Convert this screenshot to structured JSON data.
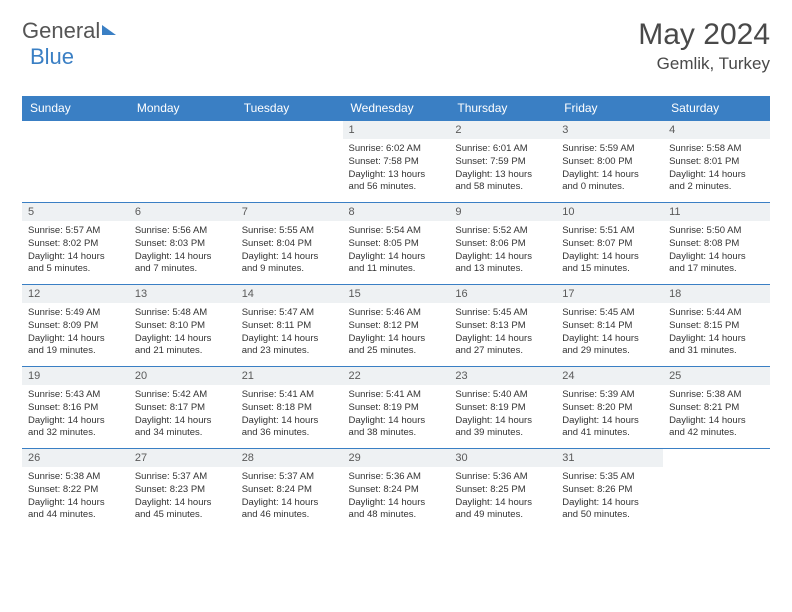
{
  "logo": {
    "part1": "General",
    "part2": "Blue"
  },
  "title": "May 2024",
  "location": "Gemlik, Turkey",
  "colors": {
    "header_bg": "#3a7fc4",
    "header_text": "#ffffff",
    "daynum_bg": "#eef1f3",
    "border": "#3a7fc4",
    "body_text": "#333333",
    "title_text": "#494949"
  },
  "day_headers": [
    "Sunday",
    "Monday",
    "Tuesday",
    "Wednesday",
    "Thursday",
    "Friday",
    "Saturday"
  ],
  "weeks": [
    [
      null,
      null,
      null,
      {
        "n": "1",
        "sr": "Sunrise: 6:02 AM",
        "ss": "Sunset: 7:58 PM",
        "dl": "Daylight: 13 hours and 56 minutes."
      },
      {
        "n": "2",
        "sr": "Sunrise: 6:01 AM",
        "ss": "Sunset: 7:59 PM",
        "dl": "Daylight: 13 hours and 58 minutes."
      },
      {
        "n": "3",
        "sr": "Sunrise: 5:59 AM",
        "ss": "Sunset: 8:00 PM",
        "dl": "Daylight: 14 hours and 0 minutes."
      },
      {
        "n": "4",
        "sr": "Sunrise: 5:58 AM",
        "ss": "Sunset: 8:01 PM",
        "dl": "Daylight: 14 hours and 2 minutes."
      }
    ],
    [
      {
        "n": "5",
        "sr": "Sunrise: 5:57 AM",
        "ss": "Sunset: 8:02 PM",
        "dl": "Daylight: 14 hours and 5 minutes."
      },
      {
        "n": "6",
        "sr": "Sunrise: 5:56 AM",
        "ss": "Sunset: 8:03 PM",
        "dl": "Daylight: 14 hours and 7 minutes."
      },
      {
        "n": "7",
        "sr": "Sunrise: 5:55 AM",
        "ss": "Sunset: 8:04 PM",
        "dl": "Daylight: 14 hours and 9 minutes."
      },
      {
        "n": "8",
        "sr": "Sunrise: 5:54 AM",
        "ss": "Sunset: 8:05 PM",
        "dl": "Daylight: 14 hours and 11 minutes."
      },
      {
        "n": "9",
        "sr": "Sunrise: 5:52 AM",
        "ss": "Sunset: 8:06 PM",
        "dl": "Daylight: 14 hours and 13 minutes."
      },
      {
        "n": "10",
        "sr": "Sunrise: 5:51 AM",
        "ss": "Sunset: 8:07 PM",
        "dl": "Daylight: 14 hours and 15 minutes."
      },
      {
        "n": "11",
        "sr": "Sunrise: 5:50 AM",
        "ss": "Sunset: 8:08 PM",
        "dl": "Daylight: 14 hours and 17 minutes."
      }
    ],
    [
      {
        "n": "12",
        "sr": "Sunrise: 5:49 AM",
        "ss": "Sunset: 8:09 PM",
        "dl": "Daylight: 14 hours and 19 minutes."
      },
      {
        "n": "13",
        "sr": "Sunrise: 5:48 AM",
        "ss": "Sunset: 8:10 PM",
        "dl": "Daylight: 14 hours and 21 minutes."
      },
      {
        "n": "14",
        "sr": "Sunrise: 5:47 AM",
        "ss": "Sunset: 8:11 PM",
        "dl": "Daylight: 14 hours and 23 minutes."
      },
      {
        "n": "15",
        "sr": "Sunrise: 5:46 AM",
        "ss": "Sunset: 8:12 PM",
        "dl": "Daylight: 14 hours and 25 minutes."
      },
      {
        "n": "16",
        "sr": "Sunrise: 5:45 AM",
        "ss": "Sunset: 8:13 PM",
        "dl": "Daylight: 14 hours and 27 minutes."
      },
      {
        "n": "17",
        "sr": "Sunrise: 5:45 AM",
        "ss": "Sunset: 8:14 PM",
        "dl": "Daylight: 14 hours and 29 minutes."
      },
      {
        "n": "18",
        "sr": "Sunrise: 5:44 AM",
        "ss": "Sunset: 8:15 PM",
        "dl": "Daylight: 14 hours and 31 minutes."
      }
    ],
    [
      {
        "n": "19",
        "sr": "Sunrise: 5:43 AM",
        "ss": "Sunset: 8:16 PM",
        "dl": "Daylight: 14 hours and 32 minutes."
      },
      {
        "n": "20",
        "sr": "Sunrise: 5:42 AM",
        "ss": "Sunset: 8:17 PM",
        "dl": "Daylight: 14 hours and 34 minutes."
      },
      {
        "n": "21",
        "sr": "Sunrise: 5:41 AM",
        "ss": "Sunset: 8:18 PM",
        "dl": "Daylight: 14 hours and 36 minutes."
      },
      {
        "n": "22",
        "sr": "Sunrise: 5:41 AM",
        "ss": "Sunset: 8:19 PM",
        "dl": "Daylight: 14 hours and 38 minutes."
      },
      {
        "n": "23",
        "sr": "Sunrise: 5:40 AM",
        "ss": "Sunset: 8:19 PM",
        "dl": "Daylight: 14 hours and 39 minutes."
      },
      {
        "n": "24",
        "sr": "Sunrise: 5:39 AM",
        "ss": "Sunset: 8:20 PM",
        "dl": "Daylight: 14 hours and 41 minutes."
      },
      {
        "n": "25",
        "sr": "Sunrise: 5:38 AM",
        "ss": "Sunset: 8:21 PM",
        "dl": "Daylight: 14 hours and 42 minutes."
      }
    ],
    [
      {
        "n": "26",
        "sr": "Sunrise: 5:38 AM",
        "ss": "Sunset: 8:22 PM",
        "dl": "Daylight: 14 hours and 44 minutes."
      },
      {
        "n": "27",
        "sr": "Sunrise: 5:37 AM",
        "ss": "Sunset: 8:23 PM",
        "dl": "Daylight: 14 hours and 45 minutes."
      },
      {
        "n": "28",
        "sr": "Sunrise: 5:37 AM",
        "ss": "Sunset: 8:24 PM",
        "dl": "Daylight: 14 hours and 46 minutes."
      },
      {
        "n": "29",
        "sr": "Sunrise: 5:36 AM",
        "ss": "Sunset: 8:24 PM",
        "dl": "Daylight: 14 hours and 48 minutes."
      },
      {
        "n": "30",
        "sr": "Sunrise: 5:36 AM",
        "ss": "Sunset: 8:25 PM",
        "dl": "Daylight: 14 hours and 49 minutes."
      },
      {
        "n": "31",
        "sr": "Sunrise: 5:35 AM",
        "ss": "Sunset: 8:26 PM",
        "dl": "Daylight: 14 hours and 50 minutes."
      },
      null
    ]
  ]
}
